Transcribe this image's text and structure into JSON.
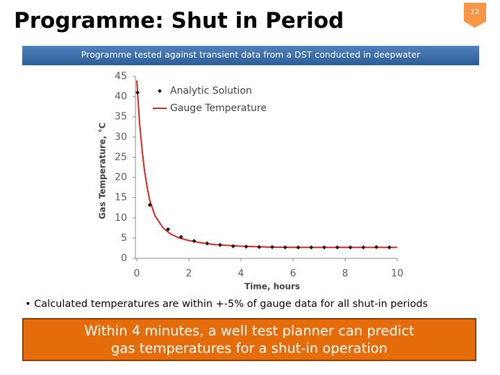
{
  "header": {
    "title": "Programme: Shut in Period",
    "page_number": "12"
  },
  "banner": "Programme tested against transient data from a DST conducted in deepwater",
  "chart_data": {
    "type": "line",
    "x_label": "Time, hours",
    "y_label": "Gas Temperature, °C",
    "xlim": [
      0,
      10
    ],
    "xticks": [
      0,
      2,
      4,
      6,
      8,
      10
    ],
    "ylim": [
      0,
      45
    ],
    "yticks": [
      0,
      5,
      10,
      15,
      20,
      25,
      30,
      35,
      40,
      45
    ],
    "legend": "top-left",
    "series": [
      {
        "name": "Analytic Solution",
        "color": "#1a1a1a",
        "mode": "markers",
        "x": [
          0.03,
          0.5,
          1.2,
          1.7,
          2.2,
          2.7,
          3.2,
          3.7,
          4.2,
          4.7,
          5.2,
          5.7,
          6.2,
          6.7,
          7.2,
          7.7,
          8.2,
          8.7,
          9.2,
          9.7
        ],
        "values": [
          41,
          13.2,
          7.2,
          5.3,
          4.3,
          3.7,
          3.3,
          3.0,
          2.9,
          2.8,
          2.8,
          2.7,
          2.7,
          2.7,
          2.7,
          2.7,
          2.7,
          2.7,
          2.8,
          2.7
        ]
      },
      {
        "name": "Gauge Temperature",
        "color": "#e0201b",
        "mode": "lines",
        "x": [
          0,
          0.05,
          0.1,
          0.2,
          0.3,
          0.4,
          0.5,
          0.7,
          1.0,
          1.3,
          1.6,
          2.0,
          2.5,
          3.0,
          4.0,
          5.0,
          6.0,
          7.0,
          8.0,
          9.0,
          10.0
        ],
        "values": [
          44,
          39,
          34,
          27,
          21.5,
          17.5,
          14.3,
          10.5,
          7.6,
          6.0,
          5.1,
          4.4,
          3.8,
          3.4,
          3.0,
          2.8,
          2.7,
          2.7,
          2.7,
          2.7,
          2.7
        ]
      }
    ]
  },
  "bullet": "Calculated temperatures are within +-5% of gauge data for all shut-in periods",
  "callout": "Within 4 minutes, a well test planner can predict gas temperatures for a shut-in operation"
}
